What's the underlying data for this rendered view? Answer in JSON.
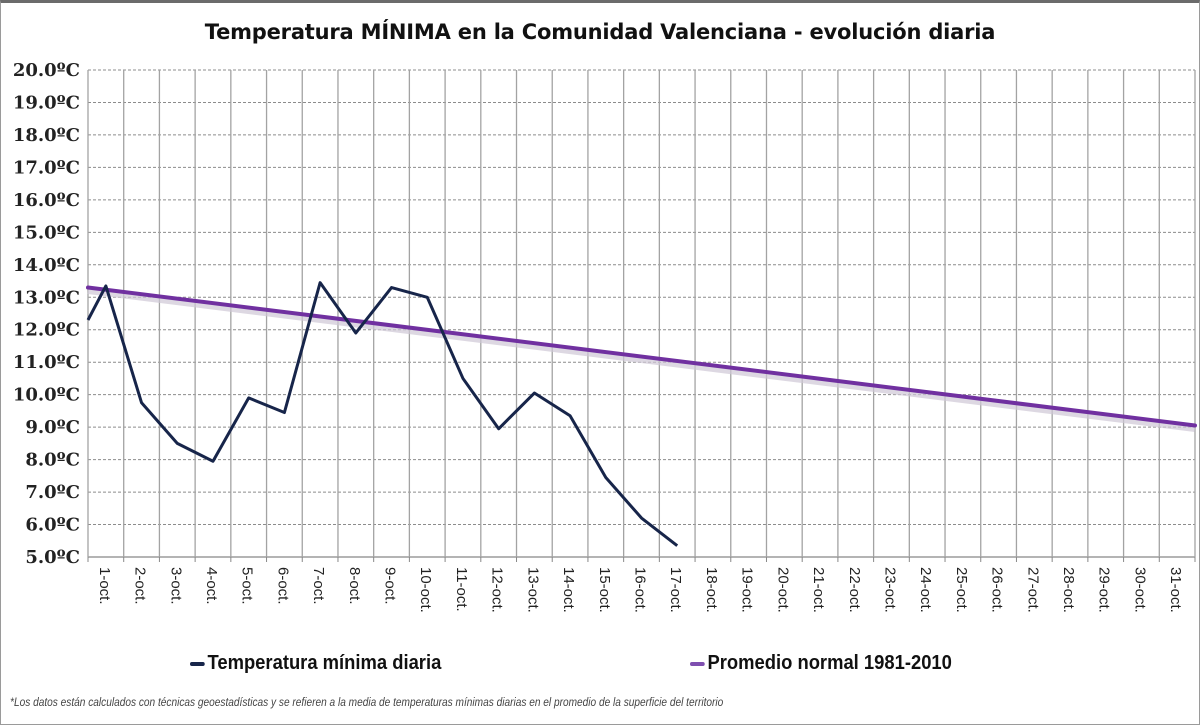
{
  "chart_data": {
    "type": "line",
    "title": "Temperatura MÍNIMA en la Comunidad Valenciana - evolución diaria",
    "xlabel": "",
    "ylabel": "",
    "ylim": [
      5.0,
      20.0
    ],
    "yticks": [
      "5.0ºC",
      "6.0ºC",
      "7.0ºC",
      "8.0ºC",
      "9.0ºC",
      "10.0ºC",
      "11.0ºC",
      "12.0ºC",
      "13.0ºC",
      "14.0ºC",
      "15.0ºC",
      "16.0ºC",
      "17.0ºC",
      "18.0ºC",
      "19.0ºC",
      "20.0ºC"
    ],
    "grid": true,
    "categories": [
      "1-oct.",
      "2-oct.",
      "3-oct.",
      "4-oct.",
      "5-oct.",
      "6-oct.",
      "7-oct.",
      "8-oct.",
      "9-oct.",
      "10-oct.",
      "11-oct.",
      "12-oct.",
      "13-oct.",
      "14-oct.",
      "15-oct.",
      "16-oct.",
      "17-oct.",
      "18-oct.",
      "19-oct.",
      "20-oct.",
      "21-oct.",
      "22-oct.",
      "23-oct.",
      "24-oct.",
      "25-oct.",
      "26-oct.",
      "27-oct.",
      "28-oct.",
      "29-oct.",
      "30-oct.",
      "31-oct."
    ],
    "series": [
      {
        "name": "Temperatura mínima diaria",
        "color": "#17254a",
        "edge_start_value": 12.3,
        "values": [
          13.35,
          9.75,
          8.5,
          7.95,
          9.9,
          9.45,
          13.45,
          11.9,
          13.3,
          13.0,
          10.5,
          8.95,
          10.05,
          9.35,
          7.45,
          6.2,
          5.35,
          null,
          null,
          null,
          null,
          null,
          null,
          null,
          null,
          null,
          null,
          null,
          null,
          null,
          null
        ]
      },
      {
        "name": "Promedio normal 1981-2010",
        "color": "#7030a0",
        "edge_start_value": 13.3,
        "edge_end_value": 9.05
      }
    ],
    "legend_position": "bottom"
  },
  "footnote": "*Los datos están calculados con técnicas geoestadísticas y se refieren a la media de temperaturas mínimas diarias en el promedio de la superficie del territorio"
}
